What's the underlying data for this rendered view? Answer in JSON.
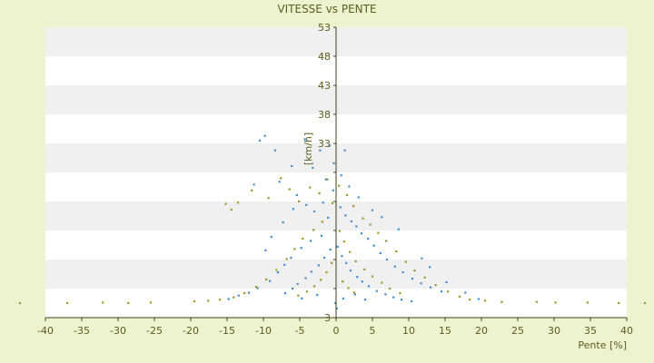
{
  "chart_data": {
    "type": "scatter",
    "title": "VITESSE vs PENTE",
    "xlabel": "Pente [%]",
    "ylabel": "[km/h]",
    "xlim": [
      -40,
      40
    ],
    "ylim": [
      3,
      53
    ],
    "x_ticks": [
      -40,
      -35,
      -30,
      -25,
      -20,
      -15,
      -10,
      -5,
      0,
      5,
      10,
      15,
      20,
      25,
      30,
      35,
      40
    ],
    "x_tick_labels": [
      "-40",
      "-35",
      "-30",
      "-25",
      "-20",
      "-15",
      "-10",
      "-5",
      "0",
      "5",
      "10",
      "15",
      "20",
      "25",
      "30",
      "35",
      "40"
    ],
    "y_ticks": [
      3,
      8,
      13,
      18,
      23,
      28,
      33,
      38,
      43,
      48,
      53
    ],
    "y_tick_labels": [
      "3",
      "",
      "",
      "",
      "",
      "",
      "33",
      "38",
      "43",
      "48",
      "53"
    ],
    "grid": "alternating horizontal bands",
    "legend": "none",
    "colors": {
      "background": "#eef3cf",
      "plot_band_light": "#ffffff",
      "plot_band_dark": "#f0f0f0",
      "axis": "#3f3f17",
      "text": "#5c5c1c",
      "series_1": "#3f8fd6",
      "series_2": "#9a9a25"
    },
    "series": [
      {
        "color": "#3f8fd6",
        "points": [
          [
            -10.5,
            33.5
          ],
          [
            -9.8,
            34.3
          ],
          [
            -4.3,
            33.7
          ],
          [
            -2.2,
            31.8
          ],
          [
            -0.9,
            32.6
          ],
          [
            1.2,
            31.8
          ],
          [
            -6.1,
            29.1
          ],
          [
            -3.2,
            28.8
          ],
          [
            -11.3,
            25.9
          ],
          [
            -7.8,
            26.4
          ],
          [
            -5.4,
            24.1
          ],
          [
            -4.1,
            22.4
          ],
          [
            -3.0,
            21.3
          ],
          [
            -1.8,
            22.8
          ],
          [
            -1.1,
            20.2
          ],
          [
            -0.4,
            24.9
          ],
          [
            0.6,
            22.0
          ],
          [
            1.3,
            20.6
          ],
          [
            2.1,
            19.6
          ],
          [
            2.8,
            18.7
          ],
          [
            3.5,
            17.5
          ],
          [
            4.4,
            16.6
          ],
          [
            5.2,
            15.4
          ],
          [
            6.1,
            14.1
          ],
          [
            7.0,
            13.0
          ],
          [
            8.1,
            11.8
          ],
          [
            9.2,
            10.8
          ],
          [
            10.5,
            9.7
          ],
          [
            11.7,
            8.9
          ],
          [
            13.0,
            8.2
          ],
          [
            14.5,
            7.5
          ],
          [
            -2.0,
            17.1
          ],
          [
            -3.5,
            16.2
          ],
          [
            -4.8,
            15.0
          ],
          [
            -6.2,
            13.3
          ],
          [
            -7.1,
            12.1
          ],
          [
            -8.0,
            10.8
          ],
          [
            -9.1,
            9.3
          ],
          [
            -10.8,
            8.1
          ],
          [
            -12.0,
            7.3
          ],
          [
            -13.4,
            6.8
          ],
          [
            -14.8,
            6.2
          ],
          [
            0.2,
            15.2
          ],
          [
            0.8,
            13.6
          ],
          [
            1.4,
            12.4
          ],
          [
            2.0,
            11.1
          ],
          [
            2.9,
            10.0
          ],
          [
            3.6,
            9.2
          ],
          [
            4.5,
            8.4
          ],
          [
            5.6,
            7.6
          ],
          [
            6.8,
            7.0
          ],
          [
            7.9,
            6.5
          ],
          [
            9.0,
            6.1
          ],
          [
            10.4,
            5.8
          ],
          [
            -0.8,
            14.7
          ],
          [
            -1.6,
            13.3
          ],
          [
            -2.4,
            12.0
          ],
          [
            -3.4,
            10.9
          ],
          [
            -4.2,
            9.8
          ],
          [
            -5.3,
            8.8
          ],
          [
            -6.0,
            8.0
          ],
          [
            -7.0,
            7.2
          ],
          [
            -0.1,
            5.5
          ],
          [
            0.1,
            4.6
          ],
          [
            1.0,
            6.3
          ],
          [
            2.6,
            7.0
          ],
          [
            4.0,
            6.1
          ],
          [
            -2.6,
            6.9
          ],
          [
            -4.7,
            6.3
          ],
          [
            1.8,
            25.6
          ],
          [
            3.1,
            23.7
          ],
          [
            5.0,
            21.5
          ],
          [
            6.3,
            20.3
          ],
          [
            8.6,
            18.2
          ],
          [
            -5.9,
            21.7
          ],
          [
            -7.3,
            19.4
          ],
          [
            -8.9,
            16.9
          ],
          [
            -9.7,
            14.6
          ],
          [
            0.7,
            27.5
          ],
          [
            -1.4,
            26.8
          ],
          [
            -8.4,
            31.8
          ],
          [
            -0.3,
            29.6
          ],
          [
            11.8,
            13.2
          ],
          [
            12.9,
            11.7
          ],
          [
            15.2,
            9.1
          ],
          [
            17.8,
            7.3
          ],
          [
            19.6,
            6.2
          ]
        ]
      },
      {
        "color": "#9a9a25",
        "points": [
          [
            -15.2,
            22.6
          ],
          [
            -14.4,
            21.6
          ],
          [
            -13.5,
            22.8
          ],
          [
            -11.6,
            24.9
          ],
          [
            -9.3,
            23.6
          ],
          [
            -7.6,
            27.0
          ],
          [
            -6.4,
            25.1
          ],
          [
            -5.1,
            23.0
          ],
          [
            -3.6,
            25.4
          ],
          [
            -2.3,
            24.4
          ],
          [
            -1.2,
            26.8
          ],
          [
            -0.5,
            22.7
          ],
          [
            0.4,
            25.7
          ],
          [
            1.5,
            24.1
          ],
          [
            2.4,
            22.2
          ],
          [
            3.7,
            20.1
          ],
          [
            4.7,
            19.0
          ],
          [
            5.8,
            17.6
          ],
          [
            6.9,
            16.2
          ],
          [
            8.3,
            14.4
          ],
          [
            9.6,
            12.6
          ],
          [
            10.8,
            11.1
          ],
          [
            12.2,
            9.9
          ],
          [
            13.7,
            8.6
          ],
          [
            15.4,
            7.5
          ],
          [
            17.0,
            6.6
          ],
          [
            18.4,
            6.1
          ],
          [
            -1.9,
            19.5
          ],
          [
            -3.1,
            18.1
          ],
          [
            -4.6,
            16.6
          ],
          [
            -5.7,
            14.8
          ],
          [
            -6.8,
            13.1
          ],
          [
            -8.2,
            11.2
          ],
          [
            -9.6,
            9.6
          ],
          [
            -11.0,
            8.3
          ],
          [
            -12.6,
            7.2
          ],
          [
            -14.1,
            6.5
          ],
          [
            -16.0,
            6.1
          ],
          [
            0.5,
            17.9
          ],
          [
            1.1,
            16.1
          ],
          [
            1.9,
            14.3
          ],
          [
            2.7,
            12.7
          ],
          [
            3.9,
            11.3
          ],
          [
            5.0,
            10.1
          ],
          [
            6.3,
            9.0
          ],
          [
            7.4,
            8.0
          ],
          [
            8.8,
            7.2
          ],
          [
            -0.6,
            12.4
          ],
          [
            -1.3,
            10.8
          ],
          [
            -2.1,
            9.5
          ],
          [
            -3.0,
            8.4
          ],
          [
            -4.0,
            7.5
          ],
          [
            -5.2,
            6.8
          ],
          [
            0.9,
            9.2
          ],
          [
            1.7,
            8.1
          ],
          [
            2.5,
            7.3
          ],
          [
            20.5,
            5.9
          ],
          [
            22.8,
            5.7
          ],
          [
            -17.6,
            5.9
          ],
          [
            -19.5,
            5.8
          ],
          [
            -25.5,
            5.6
          ],
          [
            -28.6,
            5.5
          ],
          [
            -37.0,
            5.5
          ],
          [
            27.6,
            5.7
          ],
          [
            34.6,
            5.6
          ],
          [
            38.9,
            5.5
          ],
          [
            -43.5,
            5.5
          ],
          [
            42.5,
            5.5
          ],
          [
            -32.1,
            5.6
          ],
          [
            30.2,
            5.6
          ]
        ]
      }
    ]
  }
}
